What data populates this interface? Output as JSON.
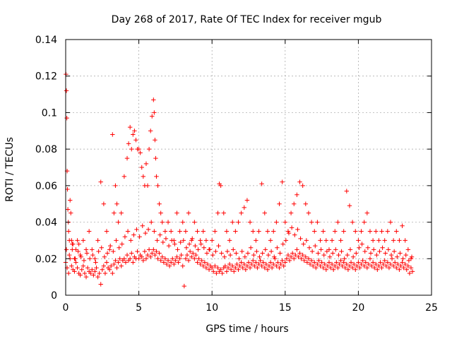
{
  "chart_data": {
    "type": "scatter",
    "title": "Day 268 of 2017, Rate Of TEC Index for receiver mgub",
    "xlabel": "GPS time / hours",
    "ylabel": "ROTI / TECUs",
    "xlim": [
      0,
      25
    ],
    "ylim": [
      0,
      0.14
    ],
    "x_ticks": [
      0,
      5,
      10,
      15,
      20,
      25
    ],
    "y_ticks": [
      0,
      0.02,
      0.04,
      0.06,
      0.08,
      0.1,
      0.12,
      0.14
    ],
    "x_tick_labels": [
      "0",
      "5",
      "10",
      "15",
      "20",
      "25"
    ],
    "y_tick_labels": [
      "0",
      "0.02",
      "0.04",
      "0.06",
      "0.08",
      "0.1",
      "0.12",
      "0.14"
    ],
    "grid": true,
    "legend": "none",
    "marker": "plus",
    "color": "#ff0000",
    "series": [
      {
        "x": [
          0.02,
          0.05,
          0.08,
          0.1,
          0.12,
          0.15,
          0.18,
          0.2,
          0.25,
          0.3,
          0.35,
          0.4,
          0.45,
          0.5,
          0.6,
          0.7,
          0.8,
          0.9,
          1.0,
          1.2,
          1.4,
          1.6,
          1.8,
          2.0,
          2.2,
          2.4,
          2.6,
          2.8,
          3.0,
          3.2,
          3.3,
          3.4,
          3.5,
          3.6,
          3.8,
          4.0,
          4.2,
          4.3,
          4.4,
          4.5,
          4.6,
          4.7,
          4.8,
          4.9,
          5.0,
          5.1,
          5.2,
          5.3,
          5.4,
          5.5,
          5.6,
          5.7,
          5.8,
          5.9,
          6.0,
          6.05,
          6.1,
          6.15,
          6.2,
          6.3,
          6.4,
          6.5,
          6.6,
          6.8,
          7.0,
          7.2,
          7.4,
          7.6,
          7.8,
          8.0,
          8.2,
          8.4,
          8.6,
          8.8,
          9.0,
          9.2,
          9.4,
          9.6,
          9.8,
          10.0,
          10.2,
          10.4,
          10.5,
          10.6,
          10.8,
          11.0,
          11.2,
          11.4,
          11.6,
          11.8,
          12.0,
          12.2,
          12.4,
          12.6,
          12.8,
          13.0,
          13.2,
          13.4,
          13.6,
          13.8,
          14.0,
          14.2,
          14.4,
          14.6,
          14.8,
          15.0,
          15.2,
          15.4,
          15.6,
          15.8,
          16.0,
          16.2,
          16.4,
          16.6,
          16.8,
          17.0,
          17.2,
          17.4,
          17.6,
          17.8,
          18.0,
          18.2,
          18.4,
          18.6,
          18.8,
          19.0,
          19.2,
          19.4,
          19.6,
          19.8,
          20.0,
          20.2,
          20.4,
          20.6,
          20.8,
          21.0,
          21.2,
          21.4,
          21.6,
          21.8,
          22.0,
          22.2,
          22.4,
          22.6,
          22.8,
          23.0,
          23.2,
          23.4,
          23.6
        ],
        "y": [
          0.121,
          0.112,
          0.097,
          0.068,
          0.058,
          0.047,
          0.04,
          0.035,
          0.03,
          0.052,
          0.045,
          0.03,
          0.025,
          0.028,
          0.02,
          0.025,
          0.03,
          0.028,
          0.022,
          0.03,
          0.025,
          0.035,
          0.025,
          0.02,
          0.03,
          0.062,
          0.05,
          0.035,
          0.025,
          0.088,
          0.045,
          0.06,
          0.05,
          0.04,
          0.045,
          0.065,
          0.075,
          0.083,
          0.092,
          0.08,
          0.088,
          0.09,
          0.085,
          0.08,
          0.08,
          0.078,
          0.07,
          0.065,
          0.06,
          0.072,
          0.06,
          0.08,
          0.09,
          0.098,
          0.107,
          0.1,
          0.085,
          0.075,
          0.065,
          0.06,
          0.05,
          0.045,
          0.04,
          0.035,
          0.04,
          0.035,
          0.03,
          0.045,
          0.035,
          0.04,
          0.035,
          0.045,
          0.03,
          0.04,
          0.035,
          0.03,
          0.035,
          0.03,
          0.025,
          0.03,
          0.035,
          0.045,
          0.061,
          0.06,
          0.045,
          0.035,
          0.03,
          0.04,
          0.035,
          0.04,
          0.045,
          0.048,
          0.052,
          0.04,
          0.035,
          0.03,
          0.035,
          0.061,
          0.045,
          0.035,
          0.03,
          0.035,
          0.04,
          0.05,
          0.062,
          0.04,
          0.035,
          0.045,
          0.05,
          0.055,
          0.062,
          0.06,
          0.05,
          0.045,
          0.04,
          0.035,
          0.04,
          0.03,
          0.035,
          0.03,
          0.025,
          0.03,
          0.035,
          0.04,
          0.03,
          0.035,
          0.057,
          0.049,
          0.04,
          0.035,
          0.03,
          0.035,
          0.04,
          0.045,
          0.035,
          0.03,
          0.035,
          0.03,
          0.035,
          0.03,
          0.035,
          0.04,
          0.03,
          0.035,
          0.03,
          0.038,
          0.03,
          0.025,
          0.02
        ]
      },
      {
        "x": [
          0.0,
          0.1,
          0.2,
          0.3,
          0.4,
          0.5,
          0.6,
          0.7,
          0.8,
          0.9,
          1.0,
          1.1,
          1.2,
          1.3,
          1.4,
          1.5,
          1.6,
          1.7,
          1.8,
          1.9,
          2.0,
          2.1,
          2.2,
          2.3,
          2.4,
          2.5,
          2.6,
          2.7,
          2.8,
          2.9,
          3.0,
          3.1,
          3.2,
          3.3,
          3.4,
          3.5,
          3.6,
          3.7,
          3.8,
          3.9,
          4.0,
          4.1,
          4.2,
          4.3,
          4.4,
          4.5,
          4.6,
          4.7,
          4.8,
          4.9,
          5.0,
          5.1,
          5.2,
          5.3,
          5.4,
          5.5,
          5.6,
          5.7,
          5.8,
          5.9,
          6.0,
          6.1,
          6.2,
          6.3,
          6.4,
          6.5,
          6.6,
          6.7,
          6.8,
          6.9,
          7.0,
          7.1,
          7.2,
          7.3,
          7.4,
          7.5,
          7.6,
          7.7,
          7.8,
          7.9,
          8.0,
          8.1,
          8.2,
          8.3,
          8.4,
          8.5,
          8.6,
          8.7,
          8.8,
          8.9,
          9.0,
          9.1,
          9.2,
          9.3,
          9.4,
          9.5,
          9.6,
          9.7,
          9.8,
          9.9,
          10.0,
          10.1,
          10.2,
          10.3,
          10.4,
          10.5,
          10.6,
          10.7,
          10.8,
          10.9,
          11.0,
          11.1,
          11.2,
          11.3,
          11.4,
          11.5,
          11.6,
          11.7,
          11.8,
          11.9,
          12.0,
          12.1,
          12.2,
          12.3,
          12.4,
          12.5,
          12.6,
          12.7,
          12.8,
          12.9,
          13.0,
          13.1,
          13.2,
          13.3,
          13.4,
          13.5,
          13.6,
          13.7,
          13.8,
          13.9,
          14.0,
          14.1,
          14.2,
          14.3,
          14.4,
          14.5,
          14.6,
          14.7,
          14.8,
          14.9,
          15.0,
          15.1,
          15.2,
          15.3,
          15.4,
          15.5,
          15.6,
          15.7,
          15.8,
          15.9,
          16.0,
          16.1,
          16.2,
          16.3,
          16.4,
          16.5,
          16.6,
          16.7,
          16.8,
          16.9,
          17.0,
          17.1,
          17.2,
          17.3,
          17.4,
          17.5,
          17.6,
          17.7,
          17.8,
          17.9,
          18.0,
          18.1,
          18.2,
          18.3,
          18.4,
          18.5,
          18.6,
          18.7,
          18.8,
          18.9,
          19.0,
          19.1,
          19.2,
          19.3,
          19.4,
          19.5,
          19.6,
          19.7,
          19.8,
          19.9,
          20.0,
          20.1,
          20.2,
          20.3,
          20.4,
          20.5,
          20.6,
          20.7,
          20.8,
          20.9,
          21.0,
          21.1,
          21.2,
          21.3,
          21.4,
          21.5,
          21.6,
          21.7,
          21.8,
          21.9,
          22.0,
          22.1,
          22.2,
          22.3,
          22.4,
          22.5,
          22.6,
          22.7,
          22.8,
          22.9,
          23.0,
          23.1,
          23.2,
          23.3,
          23.4,
          23.5,
          23.6,
          23.7
        ],
        "y": [
          0.018,
          0.015,
          0.012,
          0.02,
          0.016,
          0.014,
          0.013,
          0.018,
          0.015,
          0.012,
          0.011,
          0.014,
          0.016,
          0.012,
          0.01,
          0.015,
          0.013,
          0.012,
          0.014,
          0.011,
          0.013,
          0.015,
          0.01,
          0.012,
          0.006,
          0.014,
          0.016,
          0.012,
          0.018,
          0.015,
          0.014,
          0.016,
          0.012,
          0.017,
          0.019,
          0.015,
          0.018,
          0.02,
          0.016,
          0.019,
          0.02,
          0.018,
          0.022,
          0.019,
          0.02,
          0.023,
          0.018,
          0.021,
          0.02,
          0.024,
          0.02,
          0.022,
          0.021,
          0.019,
          0.024,
          0.02,
          0.022,
          0.025,
          0.021,
          0.023,
          0.025,
          0.022,
          0.024,
          0.02,
          0.023,
          0.019,
          0.021,
          0.018,
          0.02,
          0.017,
          0.019,
          0.016,
          0.018,
          0.02,
          0.017,
          0.019,
          0.021,
          0.018,
          0.02,
          0.022,
          0.016,
          0.005,
          0.02,
          0.022,
          0.019,
          0.024,
          0.021,
          0.023,
          0.02,
          0.022,
          0.018,
          0.02,
          0.017,
          0.019,
          0.016,
          0.018,
          0.015,
          0.017,
          0.014,
          0.016,
          0.015,
          0.013,
          0.016,
          0.012,
          0.015,
          0.013,
          0.014,
          0.012,
          0.015,
          0.016,
          0.013,
          0.015,
          0.017,
          0.014,
          0.016,
          0.013,
          0.015,
          0.017,
          0.014,
          0.016,
          0.018,
          0.015,
          0.017,
          0.014,
          0.016,
          0.018,
          0.015,
          0.017,
          0.019,
          0.016,
          0.018,
          0.015,
          0.017,
          0.019,
          0.016,
          0.018,
          0.015,
          0.017,
          0.014,
          0.016,
          0.018,
          0.015,
          0.017,
          0.02,
          0.016,
          0.018,
          0.015,
          0.017,
          0.019,
          0.016,
          0.018,
          0.02,
          0.022,
          0.019,
          0.021,
          0.023,
          0.02,
          0.022,
          0.025,
          0.021,
          0.023,
          0.02,
          0.022,
          0.019,
          0.021,
          0.018,
          0.02,
          0.017,
          0.019,
          0.016,
          0.018,
          0.015,
          0.017,
          0.019,
          0.016,
          0.018,
          0.015,
          0.017,
          0.014,
          0.016,
          0.018,
          0.015,
          0.017,
          0.014,
          0.016,
          0.018,
          0.015,
          0.017,
          0.019,
          0.016,
          0.018,
          0.015,
          0.017,
          0.014,
          0.016,
          0.018,
          0.015,
          0.017,
          0.014,
          0.016,
          0.018,
          0.015,
          0.017,
          0.019,
          0.016,
          0.018,
          0.015,
          0.017,
          0.02,
          0.016,
          0.018,
          0.015,
          0.017,
          0.014,
          0.016,
          0.018,
          0.015,
          0.017,
          0.019,
          0.016,
          0.018,
          0.015,
          0.017,
          0.02,
          0.016,
          0.018,
          0.015,
          0.017,
          0.014,
          0.016,
          0.018,
          0.015,
          0.017,
          0.014,
          0.016,
          0.012,
          0.015,
          0.013
        ]
      },
      {
        "x": [
          0.05,
          0.25,
          0.45,
          0.65,
          0.85,
          1.05,
          1.25,
          1.45,
          1.65,
          1.85,
          2.05,
          2.25,
          2.45,
          2.65,
          2.85,
          3.05,
          3.25,
          3.45,
          3.65,
          3.85,
          4.05,
          4.25,
          4.45,
          4.65,
          4.85,
          5.05,
          5.25,
          5.45,
          5.65,
          5.85,
          6.05,
          6.25,
          6.45,
          6.65,
          6.85,
          7.05,
          7.25,
          7.45,
          7.65,
          7.85,
          8.05,
          8.25,
          8.45,
          8.65,
          8.85,
          9.05,
          9.25,
          9.45,
          9.65,
          9.85,
          10.05,
          10.25,
          10.45,
          10.65,
          10.85,
          11.05,
          11.25,
          11.45,
          11.65,
          11.85,
          12.05,
          12.25,
          12.45,
          12.65,
          12.85,
          13.05,
          13.25,
          13.45,
          13.65,
          13.85,
          14.05,
          14.25,
          14.45,
          14.65,
          14.85,
          15.05,
          15.25,
          15.45,
          15.65,
          15.85,
          16.05,
          16.25,
          16.45,
          16.65,
          16.85,
          17.05,
          17.25,
          17.45,
          17.65,
          17.85,
          18.05,
          18.25,
          18.45,
          18.65,
          18.85,
          19.05,
          19.25,
          19.45,
          19.65,
          19.85,
          20.05,
          20.25,
          20.45,
          20.65,
          20.85,
          21.05,
          21.25,
          21.45,
          21.65,
          21.85,
          22.05,
          22.25,
          22.45,
          22.65,
          22.85,
          23.05,
          23.25,
          23.45,
          23.65
        ],
        "y": [
          0.025,
          0.022,
          0.028,
          0.02,
          0.024,
          0.021,
          0.019,
          0.023,
          0.02,
          0.022,
          0.018,
          0.024,
          0.026,
          0.021,
          0.023,
          0.027,
          0.024,
          0.03,
          0.026,
          0.028,
          0.032,
          0.035,
          0.03,
          0.033,
          0.036,
          0.032,
          0.038,
          0.034,
          0.036,
          0.04,
          0.035,
          0.03,
          0.033,
          0.029,
          0.031,
          0.027,
          0.03,
          0.028,
          0.025,
          0.029,
          0.03,
          0.026,
          0.028,
          0.031,
          0.027,
          0.025,
          0.028,
          0.026,
          0.023,
          0.025,
          0.022,
          0.024,
          0.027,
          0.023,
          0.021,
          0.024,
          0.022,
          0.025,
          0.023,
          0.02,
          0.024,
          0.021,
          0.023,
          0.026,
          0.022,
          0.024,
          0.021,
          0.023,
          0.025,
          0.022,
          0.024,
          0.021,
          0.026,
          0.023,
          0.028,
          0.03,
          0.034,
          0.037,
          0.033,
          0.036,
          0.031,
          0.028,
          0.03,
          0.026,
          0.024,
          0.027,
          0.023,
          0.025,
          0.022,
          0.024,
          0.021,
          0.023,
          0.025,
          0.022,
          0.024,
          0.02,
          0.022,
          0.025,
          0.021,
          0.023,
          0.026,
          0.028,
          0.024,
          0.026,
          0.023,
          0.025,
          0.022,
          0.024,
          0.026,
          0.023,
          0.025,
          0.022,
          0.024,
          0.021,
          0.023,
          0.02,
          0.022,
          0.019,
          0.021
        ]
      }
    ]
  }
}
